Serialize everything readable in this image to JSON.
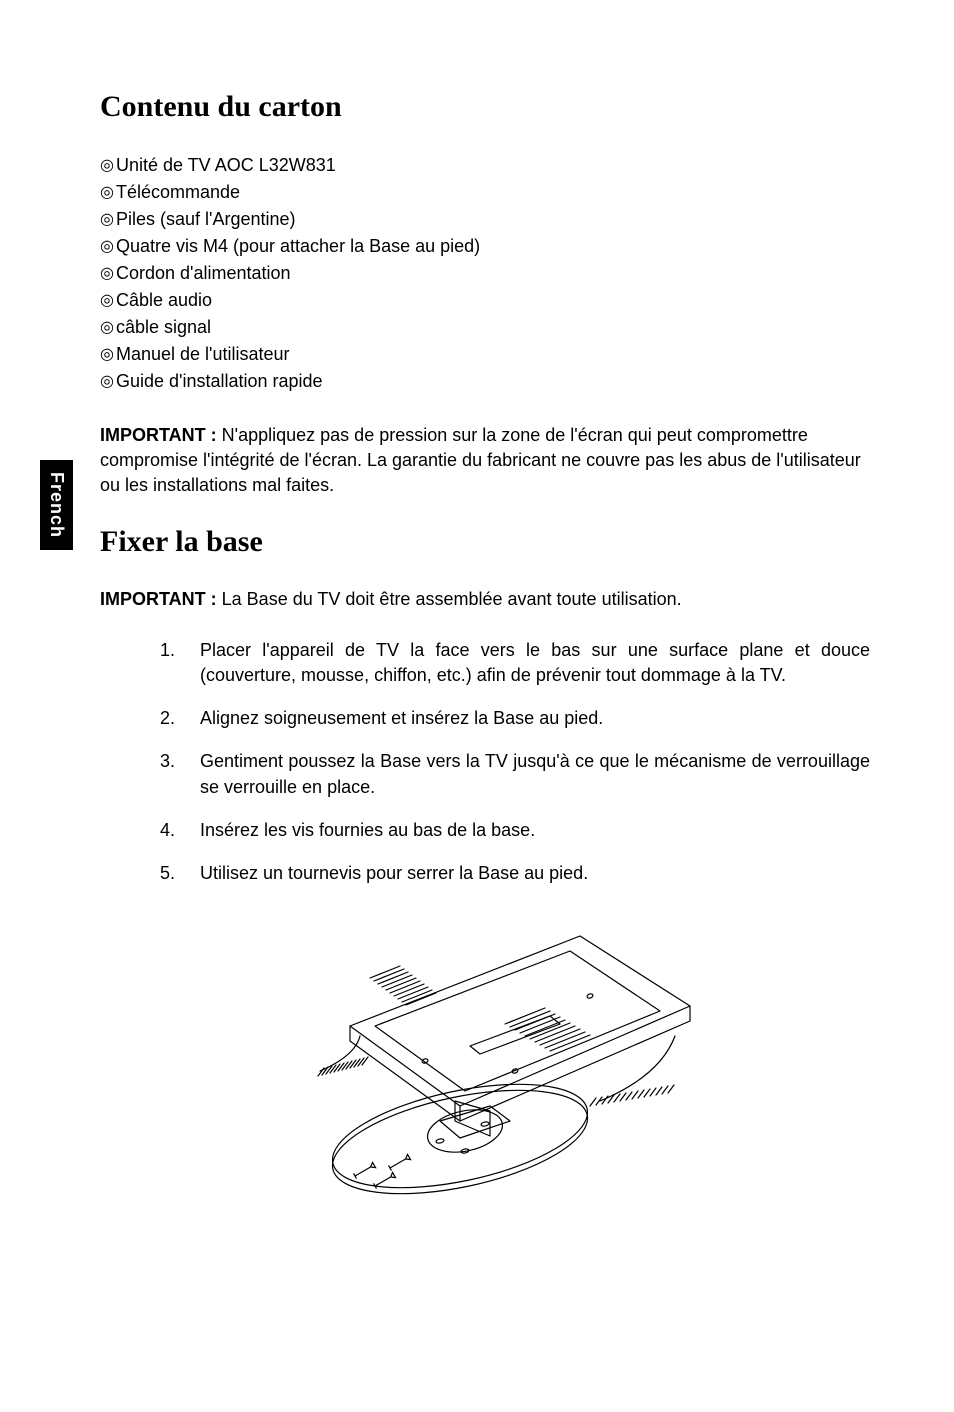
{
  "side_tab": "French",
  "section1": {
    "heading": "Contenu du carton",
    "bullets": [
      "Unité de TV AOC L32W831",
      "Télécommande",
      "Piles (sauf l'Argentine)",
      "Quatre vis M4 (pour attacher la Base au pied)",
      "Cordon d'alimentation",
      "Câble audio",
      "câble signal",
      "Manuel de l'utilisateur",
      "Guide d'installation rapide"
    ],
    "important_label": "IMPORTANT :",
    "important_text": " N'appliquez pas de pression sur la zone de l'écran qui peut compromettre compromise l'intégrité de l'écran. La garantie du fabricant ne couvre pas les abus de l'utilisateur ou les installations mal faites."
  },
  "section2": {
    "heading": "Fixer la base",
    "important_label": "IMPORTANT :",
    "important_text": " La Base du TV doit être assemblée avant toute utilisation.",
    "steps": [
      {
        "num": "1.",
        "text": "Placer l'appareil de TV la face vers le bas sur une surface plane et douce (couverture, mousse, chiffon, etc.) afin de prévenir tout dommage à la TV.",
        "justify": true
      },
      {
        "num": "2.",
        "text": "Alignez soigneusement et insérez la Base au pied.",
        "justify": false
      },
      {
        "num": "3.",
        "text": "Gentiment poussez la Base vers la TV jusqu'à ce que le mécanisme de verrouillage se verrouille en place.",
        "justify": true
      },
      {
        "num": "4.",
        "text": "Insérez les vis fournies au bas de la base.",
        "justify": false
      },
      {
        "num": "5.",
        "text": "Utilisez un tournevis pour serrer la Base au pied.",
        "justify": false
      }
    ]
  },
  "bullet_marker": "◎",
  "diagram": {
    "stroke": "#000000",
    "stroke_width": 1.2,
    "fill": "none"
  }
}
